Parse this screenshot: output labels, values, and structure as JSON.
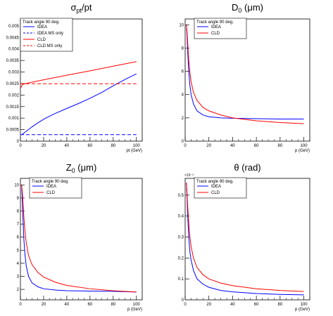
{
  "chart_data": [
    {
      "type": "line",
      "title": "σ",
      "title_sub": "pt",
      "title_tail": "/pt",
      "xlabel": "pt (GeV)",
      "ylabel": "",
      "xlim": [
        0,
        105
      ],
      "ylim": [
        0,
        0.0053
      ],
      "xticks": [
        0,
        20,
        40,
        60,
        80,
        100
      ],
      "yticks": [
        0.0005,
        0.001,
        0.0015,
        0.002,
        0.0025,
        0.003,
        0.0035,
        0.004,
        0.0045,
        0.005
      ],
      "ytick_labels": [
        "0.0005",
        "0.001",
        "0.0015",
        "0.002",
        "0.0025",
        "0.003",
        "0.0035",
        "0.004",
        "0.0045",
        "0.005"
      ],
      "y_zero_label": "0",
      "legend_header": "Track angle 90 deg.",
      "legend_position": "top-left",
      "series": [
        {
          "name": "IDEA",
          "color": "#0000ff",
          "dash": "solid",
          "x": [
            1,
            2,
            3,
            5,
            8,
            10,
            15,
            20,
            25,
            30,
            40,
            50,
            60,
            70,
            80,
            90,
            100
          ],
          "y": [
            0.00028,
            0.00031,
            0.00035,
            0.00043,
            0.00054,
            0.00062,
            0.00079,
            0.00095,
            0.00108,
            0.0012,
            0.00142,
            0.00163,
            0.00186,
            0.00211,
            0.0024,
            0.00267,
            0.00292
          ]
        },
        {
          "name": "IDEA MS only",
          "color": "#0000ff",
          "dash": "dashed",
          "x": [
            0,
            100
          ],
          "y": [
            0.00028,
            0.00028
          ]
        },
        {
          "name": "CLD",
          "color": "#ff0000",
          "dash": "solid",
          "x": [
            0.5,
            1,
            1.5,
            2,
            3,
            5,
            10,
            20,
            40,
            60,
            80,
            100
          ],
          "y": [
            0.00232,
            0.00238,
            0.00243,
            0.00246,
            0.00248,
            0.0025,
            0.00256,
            0.00266,
            0.00286,
            0.00305,
            0.00325,
            0.00345
          ]
        },
        {
          "name": "CLD MS only",
          "color": "#ff0000",
          "dash": "dashed",
          "x": [
            0,
            100
          ],
          "y": [
            0.00249,
            0.00249
          ]
        }
      ]
    },
    {
      "type": "line",
      "title": "D",
      "title_sub": "0",
      "title_tail": " (μm)",
      "xlabel": "p (GeV)",
      "ylabel": "",
      "xlim": [
        0,
        105
      ],
      "ylim": [
        0,
        10.5
      ],
      "xticks": [
        0,
        20,
        40,
        60,
        80,
        100
      ],
      "yticks": [
        2,
        4,
        6,
        8,
        10
      ],
      "ytick_labels": [
        "2",
        "4",
        "6",
        "8",
        "10"
      ],
      "y_zero_label": "0",
      "legend_header": "Track angle 90 deg.",
      "legend_position": "top-right",
      "series": [
        {
          "name": "IDEA",
          "color": "#0000ff",
          "dash": "solid",
          "x": [
            1,
            1.5,
            2,
            3,
            4,
            5,
            7,
            10,
            15,
            20,
            30,
            40,
            60,
            80,
            100
          ],
          "y": [
            10,
            9.2,
            8.0,
            6.0,
            4.8,
            4.0,
            3.2,
            2.6,
            2.25,
            2.1,
            2.0,
            1.97,
            1.93,
            1.9,
            1.9
          ]
        },
        {
          "name": "CLD",
          "color": "#ff0000",
          "dash": "solid",
          "x": [
            1,
            1.5,
            2,
            3,
            4,
            5,
            7,
            10,
            15,
            20,
            30,
            40,
            60,
            80,
            100
          ],
          "y": [
            10,
            9.5,
            8.7,
            7.0,
            5.9,
            5.1,
            4.2,
            3.5,
            2.9,
            2.6,
            2.25,
            2.0,
            1.75,
            1.6,
            1.5
          ]
        }
      ]
    },
    {
      "type": "line",
      "title": "Z",
      "title_sub": "0",
      "title_tail": " (μm)",
      "xlabel": "p (GeV)",
      "ylabel": "",
      "xlim": [
        0,
        105
      ],
      "ylim": [
        1.2,
        10.5
      ],
      "xticks": [
        0,
        20,
        40,
        60,
        80,
        100
      ],
      "yticks": [
        2,
        3,
        4,
        5,
        6,
        7,
        8,
        9,
        10
      ],
      "ytick_labels": [
        "2",
        "3",
        "4",
        "5",
        "6",
        "7",
        "8",
        "9",
        "10"
      ],
      "y_zero_label": "",
      "legend_header": "Track angle 90 deg.",
      "legend_position": "top-right",
      "series": [
        {
          "name": "IDEA",
          "color": "#0000ff",
          "dash": "solid",
          "x": [
            1,
            1.5,
            2,
            3,
            4,
            5,
            7,
            10,
            15,
            20,
            30,
            40,
            60,
            80,
            100
          ],
          "y": [
            10,
            9.0,
            7.8,
            5.8,
            4.6,
            3.8,
            3.0,
            2.5,
            2.2,
            2.05,
            1.95,
            1.9,
            1.87,
            1.85,
            1.8
          ]
        },
        {
          "name": "CLD",
          "color": "#ff0000",
          "dash": "solid",
          "x": [
            1,
            1.5,
            2,
            3,
            4,
            5,
            7,
            10,
            15,
            20,
            30,
            40,
            60,
            80,
            100
          ],
          "y": [
            10,
            9.6,
            9.0,
            7.5,
            6.4,
            5.6,
            4.6,
            3.9,
            3.3,
            2.95,
            2.55,
            2.3,
            2.05,
            1.9,
            1.8
          ]
        }
      ]
    },
    {
      "type": "line",
      "title": "θ",
      "title_sub": "",
      "title_tail": " (rad)",
      "xlabel": "p (GeV)",
      "ylabel": "",
      "xlim": [
        0,
        105
      ],
      "ylim": [
        0,
        0.58
      ],
      "xticks": [
        0,
        20,
        40,
        60,
        80,
        100
      ],
      "yticks": [
        0.1,
        0.2,
        0.3,
        0.4,
        0.5
      ],
      "ytick_labels": [
        "0.1",
        "0.2",
        "0.3",
        "0.4",
        "0.5"
      ],
      "y_zero_label": "0",
      "y_multiplier": "×10⁻³",
      "legend_header": "Track angle 90 deg.",
      "legend_position": "top-right",
      "series": [
        {
          "name": "IDEA",
          "color": "#0000ff",
          "dash": "solid",
          "x": [
            1,
            1.5,
            2,
            3,
            4,
            5,
            7,
            10,
            15,
            20,
            30,
            40,
            60,
            80,
            100
          ],
          "y": [
            0.56,
            0.5,
            0.42,
            0.3,
            0.23,
            0.19,
            0.14,
            0.1,
            0.075,
            0.06,
            0.045,
            0.038,
            0.03,
            0.026,
            0.024
          ]
        },
        {
          "name": "CLD",
          "color": "#ff0000",
          "dash": "solid",
          "x": [
            1,
            1.5,
            2,
            3,
            4,
            5,
            7,
            10,
            15,
            20,
            30,
            40,
            60,
            80,
            100
          ],
          "y": [
            0.56,
            0.52,
            0.46,
            0.37,
            0.3,
            0.255,
            0.2,
            0.155,
            0.12,
            0.1,
            0.08,
            0.068,
            0.053,
            0.045,
            0.04
          ]
        }
      ]
    }
  ]
}
